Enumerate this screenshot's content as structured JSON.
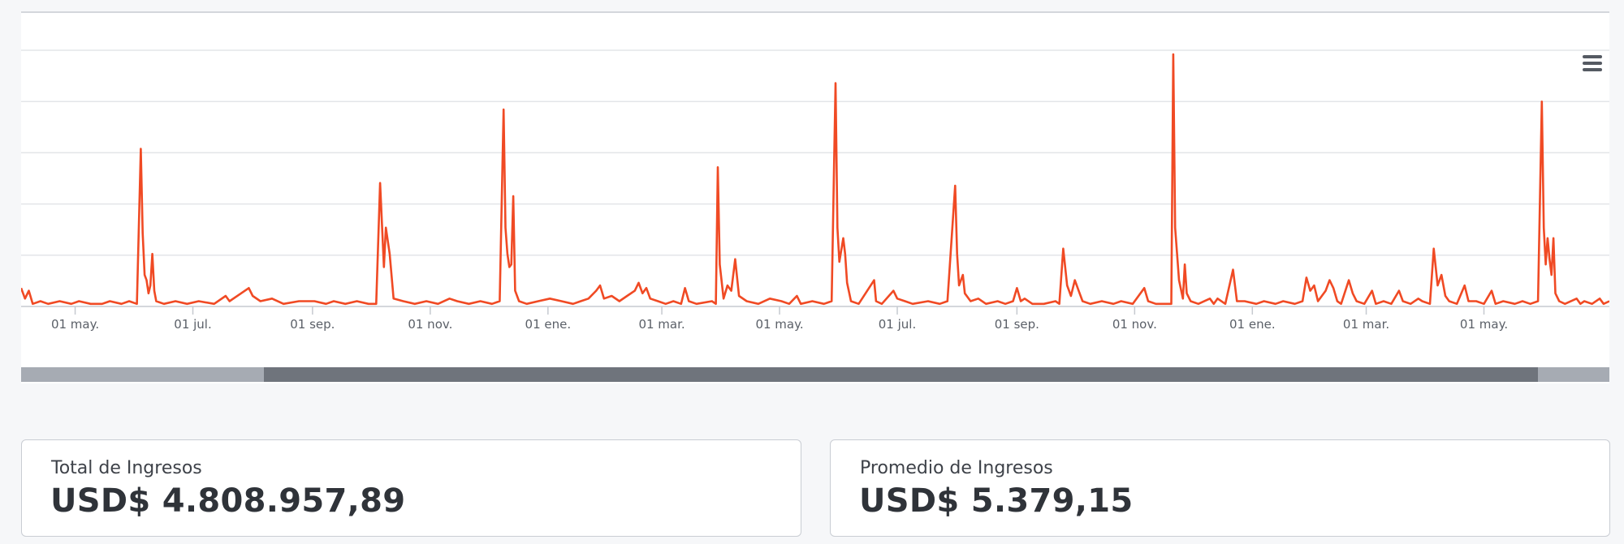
{
  "chart": {
    "menu_icon": "hamburger-menu-icon",
    "line_color": "#f04a24",
    "grid_color": "#e3e5e8",
    "axis_color": "#c6cad0"
  },
  "chart_data": {
    "type": "line",
    "title": "",
    "xlabel": "",
    "ylabel": "",
    "x_tick_labels": [
      "01 may.",
      "01 jul.",
      "01 sep.",
      "01 nov.",
      "01 ene.",
      "01 mar.",
      "01 may.",
      "01 jul.",
      "01 sep.",
      "01 nov.",
      "01 ene.",
      "01 mar.",
      "01 may."
    ],
    "x_tick_days": [
      28,
      89,
      151,
      212,
      273,
      332,
      393,
      454,
      516,
      577,
      638,
      697,
      758
    ],
    "x_range_days": [
      0,
      823
    ],
    "y_tick_lines": 5,
    "grid": true,
    "legend": "none",
    "y_units": "relative",
    "series": [
      {
        "points": [
          [
            0,
            0.07
          ],
          [
            2,
            0.03
          ],
          [
            4,
            0.06
          ],
          [
            6,
            0.01
          ],
          [
            10,
            0.02
          ],
          [
            14,
            0.01
          ],
          [
            20,
            0.02
          ],
          [
            26,
            0.01
          ],
          [
            30,
            0.02
          ],
          [
            36,
            0.01
          ],
          [
            42,
            0.01
          ],
          [
            46,
            0.02
          ],
          [
            52,
            0.01
          ],
          [
            56,
            0.02
          ],
          [
            60,
            0.01
          ],
          [
            62,
            0.6
          ],
          [
            63,
            0.28
          ],
          [
            64,
            0.12
          ],
          [
            65,
            0.1
          ],
          [
            66,
            0.05
          ],
          [
            67,
            0.08
          ],
          [
            68,
            0.2
          ],
          [
            69,
            0.06
          ],
          [
            70,
            0.02
          ],
          [
            74,
            0.01
          ],
          [
            80,
            0.02
          ],
          [
            86,
            0.01
          ],
          [
            92,
            0.02
          ],
          [
            100,
            0.01
          ],
          [
            106,
            0.04
          ],
          [
            108,
            0.02
          ],
          [
            114,
            0.05
          ],
          [
            118,
            0.07
          ],
          [
            120,
            0.04
          ],
          [
            124,
            0.02
          ],
          [
            130,
            0.03
          ],
          [
            136,
            0.01
          ],
          [
            144,
            0.02
          ],
          [
            152,
            0.02
          ],
          [
            158,
            0.01
          ],
          [
            162,
            0.02
          ],
          [
            168,
            0.01
          ],
          [
            174,
            0.02
          ],
          [
            180,
            0.01
          ],
          [
            184,
            0.01
          ],
          [
            186,
            0.47
          ],
          [
            188,
            0.15
          ],
          [
            189,
            0.3
          ],
          [
            191,
            0.2
          ],
          [
            193,
            0.03
          ],
          [
            198,
            0.02
          ],
          [
            204,
            0.01
          ],
          [
            210,
            0.02
          ],
          [
            216,
            0.01
          ],
          [
            222,
            0.03
          ],
          [
            226,
            0.02
          ],
          [
            232,
            0.01
          ],
          [
            238,
            0.02
          ],
          [
            244,
            0.01
          ],
          [
            248,
            0.02
          ],
          [
            250,
            0.75
          ],
          [
            251,
            0.3
          ],
          [
            252,
            0.2
          ],
          [
            253,
            0.15
          ],
          [
            254,
            0.16
          ],
          [
            255,
            0.42
          ],
          [
            256,
            0.06
          ],
          [
            258,
            0.02
          ],
          [
            262,
            0.01
          ],
          [
            268,
            0.02
          ],
          [
            274,
            0.03
          ],
          [
            280,
            0.02
          ],
          [
            286,
            0.01
          ],
          [
            290,
            0.02
          ],
          [
            294,
            0.03
          ],
          [
            298,
            0.06
          ],
          [
            300,
            0.08
          ],
          [
            302,
            0.03
          ],
          [
            306,
            0.04
          ],
          [
            310,
            0.02
          ],
          [
            314,
            0.04
          ],
          [
            318,
            0.06
          ],
          [
            320,
            0.09
          ],
          [
            322,
            0.05
          ],
          [
            324,
            0.07
          ],
          [
            326,
            0.03
          ],
          [
            330,
            0.02
          ],
          [
            334,
            0.01
          ],
          [
            338,
            0.02
          ],
          [
            342,
            0.01
          ],
          [
            344,
            0.07
          ],
          [
            346,
            0.02
          ],
          [
            350,
            0.01
          ],
          [
            358,
            0.02
          ],
          [
            360,
            0.01
          ],
          [
            361,
            0.53
          ],
          [
            362,
            0.16
          ],
          [
            364,
            0.03
          ],
          [
            366,
            0.08
          ],
          [
            368,
            0.06
          ],
          [
            370,
            0.18
          ],
          [
            372,
            0.04
          ],
          [
            376,
            0.02
          ],
          [
            382,
            0.01
          ],
          [
            388,
            0.03
          ],
          [
            394,
            0.02
          ],
          [
            398,
            0.01
          ],
          [
            402,
            0.04
          ],
          [
            404,
            0.01
          ],
          [
            410,
            0.02
          ],
          [
            416,
            0.01
          ],
          [
            420,
            0.02
          ],
          [
            422,
            0.85
          ],
          [
            423,
            0.3
          ],
          [
            424,
            0.17
          ],
          [
            426,
            0.26
          ],
          [
            427,
            0.2
          ],
          [
            428,
            0.09
          ],
          [
            430,
            0.02
          ],
          [
            434,
            0.01
          ],
          [
            442,
            0.1
          ],
          [
            443,
            0.02
          ],
          [
            446,
            0.01
          ],
          [
            452,
            0.06
          ],
          [
            454,
            0.03
          ],
          [
            458,
            0.02
          ],
          [
            462,
            0.01
          ],
          [
            470,
            0.02
          ],
          [
            476,
            0.01
          ],
          [
            480,
            0.02
          ],
          [
            484,
            0.46
          ],
          [
            485,
            0.2
          ],
          [
            486,
            0.08
          ],
          [
            488,
            0.12
          ],
          [
            489,
            0.05
          ],
          [
            492,
            0.02
          ],
          [
            496,
            0.03
          ],
          [
            500,
            0.01
          ],
          [
            506,
            0.02
          ],
          [
            510,
            0.01
          ],
          [
            514,
            0.02
          ],
          [
            516,
            0.07
          ],
          [
            518,
            0.02
          ],
          [
            520,
            0.03
          ],
          [
            524,
            0.01
          ],
          [
            530,
            0.01
          ],
          [
            536,
            0.02
          ],
          [
            538,
            0.01
          ],
          [
            540,
            0.22
          ],
          [
            542,
            0.08
          ],
          [
            544,
            0.04
          ],
          [
            546,
            0.1
          ],
          [
            548,
            0.06
          ],
          [
            550,
            0.02
          ],
          [
            554,
            0.01
          ],
          [
            560,
            0.02
          ],
          [
            566,
            0.01
          ],
          [
            570,
            0.02
          ],
          [
            576,
            0.01
          ],
          [
            582,
            0.07
          ],
          [
            584,
            0.02
          ],
          [
            588,
            0.01
          ],
          [
            596,
            0.01
          ],
          [
            597,
            0.96
          ],
          [
            598,
            0.3
          ],
          [
            600,
            0.1
          ],
          [
            602,
            0.03
          ],
          [
            603,
            0.16
          ],
          [
            604,
            0.05
          ],
          [
            606,
            0.02
          ],
          [
            610,
            0.01
          ],
          [
            616,
            0.03
          ],
          [
            618,
            0.01
          ],
          [
            620,
            0.03
          ],
          [
            624,
            0.01
          ],
          [
            628,
            0.14
          ],
          [
            630,
            0.02
          ],
          [
            634,
            0.02
          ],
          [
            640,
            0.01
          ],
          [
            644,
            0.02
          ],
          [
            650,
            0.01
          ],
          [
            654,
            0.02
          ],
          [
            660,
            0.01
          ],
          [
            664,
            0.02
          ],
          [
            666,
            0.11
          ],
          [
            668,
            0.06
          ],
          [
            670,
            0.08
          ],
          [
            672,
            0.02
          ],
          [
            676,
            0.06
          ],
          [
            678,
            0.1
          ],
          [
            680,
            0.07
          ],
          [
            682,
            0.02
          ],
          [
            684,
            0.01
          ],
          [
            688,
            0.1
          ],
          [
            690,
            0.05
          ],
          [
            692,
            0.02
          ],
          [
            696,
            0.01
          ],
          [
            700,
            0.06
          ],
          [
            702,
            0.01
          ],
          [
            706,
            0.02
          ],
          [
            710,
            0.01
          ],
          [
            714,
            0.06
          ],
          [
            716,
            0.02
          ],
          [
            720,
            0.01
          ],
          [
            724,
            0.03
          ],
          [
            726,
            0.02
          ],
          [
            730,
            0.01
          ],
          [
            732,
            0.22
          ],
          [
            734,
            0.08
          ],
          [
            736,
            0.12
          ],
          [
            738,
            0.04
          ],
          [
            740,
            0.02
          ],
          [
            744,
            0.01
          ],
          [
            748,
            0.08
          ],
          [
            750,
            0.02
          ],
          [
            754,
            0.02
          ],
          [
            758,
            0.01
          ],
          [
            762,
            0.06
          ],
          [
            764,
            0.01
          ],
          [
            768,
            0.02
          ],
          [
            774,
            0.01
          ],
          [
            778,
            0.02
          ],
          [
            782,
            0.01
          ],
          [
            786,
            0.02
          ],
          [
            788,
            0.78
          ],
          [
            789,
            0.3
          ],
          [
            790,
            0.16
          ],
          [
            791,
            0.26
          ],
          [
            792,
            0.18
          ],
          [
            793,
            0.12
          ],
          [
            794,
            0.26
          ],
          [
            795,
            0.05
          ],
          [
            797,
            0.02
          ],
          [
            800,
            0.01
          ],
          [
            806,
            0.03
          ],
          [
            808,
            0.01
          ],
          [
            810,
            0.02
          ],
          [
            814,
            0.01
          ],
          [
            818,
            0.03
          ],
          [
            820,
            0.01
          ],
          [
            823,
            0.02
          ]
        ]
      }
    ]
  },
  "navigator": {
    "start_fraction": 0.153,
    "end_fraction": 0.955
  },
  "stats": {
    "total": {
      "label": "Total de Ingresos",
      "value": "USD$ 4.808.957,89"
    },
    "average": {
      "label": "Promedio de Ingresos",
      "value": "USD$ 5.379,15"
    }
  }
}
